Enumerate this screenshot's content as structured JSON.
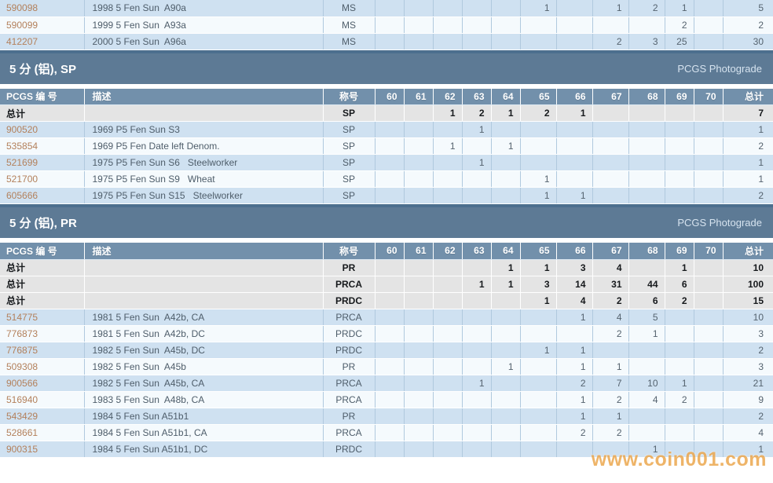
{
  "labels": {
    "total": "总计",
    "photograde": "PCGS Photograde",
    "watermark": "www.coin001.com"
  },
  "header": {
    "id": "PCGS 编 号",
    "desc": "描述",
    "grade": "称号",
    "grades": [
      "60",
      "61",
      "62",
      "63",
      "64",
      "65",
      "66",
      "67",
      "68",
      "69",
      "70"
    ],
    "total": "总计"
  },
  "colors": {
    "section_bar": "#5d7a95",
    "table_header": "#7290ab",
    "thick_border": "#4c6f8e",
    "row_blue": "#cfe1f1",
    "row_light": "#f5fafd",
    "total_row_bg": "#e4e4e4",
    "grid_line": "#b0c9de",
    "link": "#b3805b",
    "watermark": "#eca74e"
  },
  "ms_table": {
    "rows": [
      {
        "id": "590098",
        "desc": "1998 5 Fen Sun  A90a",
        "grade": "MS",
        "values": {
          "65": "1",
          "67": "1",
          "68": "2",
          "69": "1"
        },
        "total": "5"
      },
      {
        "id": "590099",
        "desc": "1999 5 Fen Sun  A93a",
        "grade": "MS",
        "values": {
          "69": "2"
        },
        "total": "2"
      },
      {
        "id": "412207",
        "desc": "2000 5 Fen Sun  A96a",
        "grade": "MS",
        "values": {
          "67": "2",
          "68": "3",
          "69": "25"
        },
        "total": "30"
      }
    ]
  },
  "sp_section": {
    "title": "5 分 (铝), SP",
    "rows": [
      {
        "is_total": true,
        "grade": "SP",
        "values": {
          "62": "1",
          "63": "2",
          "64": "1",
          "65": "2",
          "66": "1"
        },
        "total": "7"
      },
      {
        "id": "900520",
        "desc": "1969 P5 Fen Sun S3",
        "grade": "SP",
        "values": {
          "63": "1"
        },
        "total": "1"
      },
      {
        "id": "535854",
        "desc": "1969 P5 Fen Date left Denom.",
        "grade": "SP",
        "values": {
          "62": "1",
          "64": "1"
        },
        "total": "2"
      },
      {
        "id": "521699",
        "desc": "1975 P5 Fen Sun S6   Steelworker",
        "grade": "SP",
        "values": {
          "63": "1"
        },
        "total": "1"
      },
      {
        "id": "521700",
        "desc": "1975 P5 Fen Sun S9   Wheat",
        "grade": "SP",
        "values": {
          "65": "1"
        },
        "total": "1"
      },
      {
        "id": "605666",
        "desc": "1975 P5 Fen Sun S15   Steelworker",
        "grade": "SP",
        "values": {
          "65": "1",
          "66": "1"
        },
        "total": "2"
      }
    ]
  },
  "pr_section": {
    "title": "5 分 (铝), PR",
    "rows": [
      {
        "is_total": true,
        "grade": "PR",
        "values": {
          "64": "1",
          "65": "1",
          "66": "3",
          "67": "4",
          "69": "1"
        },
        "total": "10"
      },
      {
        "is_total": true,
        "grade": "PRCA",
        "values": {
          "63": "1",
          "64": "1",
          "65": "3",
          "66": "14",
          "67": "31",
          "68": "44",
          "69": "6"
        },
        "total": "100"
      },
      {
        "is_total": true,
        "grade": "PRDC",
        "values": {
          "65": "1",
          "66": "4",
          "67": "2",
          "68": "6",
          "69": "2"
        },
        "total": "15"
      },
      {
        "id": "514775",
        "desc": "1981 5 Fen Sun  A42b, CA",
        "grade": "PRCA",
        "values": {
          "66": "1",
          "67": "4",
          "68": "5"
        },
        "total": "10"
      },
      {
        "id": "776873",
        "desc": "1981 5 Fen Sun  A42b, DC",
        "grade": "PRDC",
        "values": {
          "67": "2",
          "68": "1"
        },
        "total": "3"
      },
      {
        "id": "776875",
        "desc": "1982 5 Fen Sun  A45b, DC",
        "grade": "PRDC",
        "values": {
          "65": "1",
          "66": "1"
        },
        "total": "2"
      },
      {
        "id": "509308",
        "desc": "1982 5 Fen Sun  A45b",
        "grade": "PR",
        "values": {
          "64": "1",
          "66": "1",
          "67": "1"
        },
        "total": "3"
      },
      {
        "id": "900566",
        "desc": "1982 5 Fen Sun  A45b, CA",
        "grade": "PRCA",
        "values": {
          "63": "1",
          "66": "2",
          "67": "7",
          "68": "10",
          "69": "1"
        },
        "total": "21"
      },
      {
        "id": "516940",
        "desc": "1983 5 Fen Sun  A48b, CA",
        "grade": "PRCA",
        "values": {
          "66": "1",
          "67": "2",
          "68": "4",
          "69": "2"
        },
        "total": "9"
      },
      {
        "id": "543429",
        "desc": "1984 5 Fen Sun A51b1",
        "grade": "PR",
        "values": {
          "66": "1",
          "67": "1"
        },
        "total": "2"
      },
      {
        "id": "528661",
        "desc": "1984 5 Fen Sun A51b1, CA",
        "grade": "PRCA",
        "values": {
          "66": "2",
          "67": "2"
        },
        "total": "4"
      },
      {
        "id": "900315",
        "desc": "1984 5 Fen Sun A51b1, DC",
        "grade": "PRDC",
        "values": {
          "68": "1"
        },
        "total": "1"
      }
    ]
  }
}
